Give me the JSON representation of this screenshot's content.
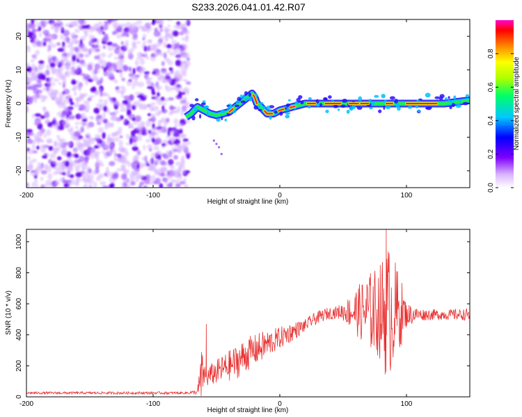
{
  "title": "S233.2026.041.01.42.R07",
  "chart_data": [
    {
      "type": "heatmap",
      "name": "spectrogram",
      "xlabel": "Height of straight line (km)",
      "ylabel": "Frequency (Hz)",
      "xlim": [
        -200,
        150
      ],
      "ylim": [
        -25,
        25
      ],
      "xticks": [
        -200,
        -100,
        0,
        100
      ],
      "xtick_labels": [
        "-200",
        "-100",
        "0",
        "100"
      ],
      "yticks": [
        -20,
        -10,
        0,
        10,
        20
      ],
      "ytick_labels": [
        "-20",
        "-10",
        "0",
        "10",
        "20"
      ],
      "noise_region_x": [
        -200,
        -72
      ],
      "ridge": {
        "x": [
          -74,
          -70,
          -65,
          -60,
          -55,
          -50,
          -45,
          -40,
          -35,
          -30,
          -25,
          -22,
          -20,
          -18,
          -15,
          -10,
          -5,
          0,
          5,
          10,
          15,
          20,
          30,
          40,
          50,
          60,
          70,
          80,
          90,
          100,
          110,
          120,
          130,
          140,
          150
        ],
        "freq": [
          -4,
          -3,
          -1,
          -2,
          -3,
          -3.5,
          -3,
          -2.5,
          -1,
          0.5,
          2,
          3,
          2,
          0,
          -1,
          -3,
          -3,
          -2,
          -1.5,
          -1,
          -0.5,
          0,
          0,
          0,
          0,
          0,
          0,
          0,
          0,
          0,
          0,
          0,
          0,
          0.5,
          1
        ]
      },
      "colorbar": {
        "label": "Normalized spectral amplitude",
        "range": [
          0,
          1
        ],
        "ticks": [
          0.0,
          0.2,
          0.4,
          0.6,
          0.8
        ],
        "tick_labels": [
          "0.0",
          "0.2",
          "0.4",
          "0.6",
          "0.8"
        ],
        "colors": [
          "#ffffff",
          "#d9b3ff",
          "#7f00ff",
          "#0000ff",
          "#00c8ff",
          "#00ff66",
          "#aaff00",
          "#ffff00",
          "#ff8000",
          "#ff0000",
          "#ff00cc"
        ]
      }
    },
    {
      "type": "line",
      "name": "snr",
      "xlabel": "Height of straight line (km)",
      "ylabel": "SNR (10 * v/v)",
      "xlim": [
        -200,
        150
      ],
      "ylim": [
        0,
        1080
      ],
      "xticks": [
        -200,
        -100,
        0,
        100
      ],
      "xtick_labels": [
        "-200",
        "-100",
        "0",
        "100"
      ],
      "yticks": [
        0,
        200,
        400,
        600,
        800,
        1000
      ],
      "ytick_labels": [
        "0",
        "200",
        "400",
        "600",
        "800",
        "1000"
      ],
      "line_color": "#e83030",
      "series": [
        {
          "name": "SNR",
          "x": [
            -200,
            -150,
            -100,
            -75,
            -65,
            -62,
            -60,
            -58,
            -55,
            -50,
            -45,
            -40,
            -35,
            -30,
            -25,
            -20,
            -15,
            -10,
            -5,
            0,
            5,
            10,
            15,
            20,
            25,
            30,
            35,
            40,
            45,
            50,
            55,
            60,
            65,
            70,
            75,
            80,
            82,
            85,
            90,
            95,
            100,
            110,
            120,
            130,
            140,
            150
          ],
          "mean": [
            25,
            25,
            25,
            25,
            30,
            120,
            150,
            120,
            140,
            160,
            180,
            200,
            220,
            250,
            280,
            300,
            320,
            340,
            360,
            380,
            400,
            420,
            440,
            460,
            490,
            510,
            530,
            540,
            545,
            550,
            550,
            550,
            550,
            550,
            550,
            550,
            550,
            550,
            550,
            550,
            530,
            530,
            530,
            530,
            530,
            530
          ],
          "spread": [
            8,
            8,
            8,
            8,
            15,
            200,
            80,
            60,
            70,
            80,
            90,
            100,
            110,
            110,
            110,
            100,
            100,
            90,
            80,
            70,
            70,
            60,
            50,
            40,
            40,
            40,
            40,
            40,
            40,
            60,
            100,
            150,
            200,
            250,
            280,
            320,
            400,
            450,
            350,
            250,
            80,
            40,
            35,
            35,
            35,
            40
          ]
        }
      ],
      "annotations": [
        {
          "x": -58,
          "y": 470,
          "text": ""
        },
        {
          "x": 84,
          "y": 1080,
          "text": ""
        }
      ]
    }
  ]
}
